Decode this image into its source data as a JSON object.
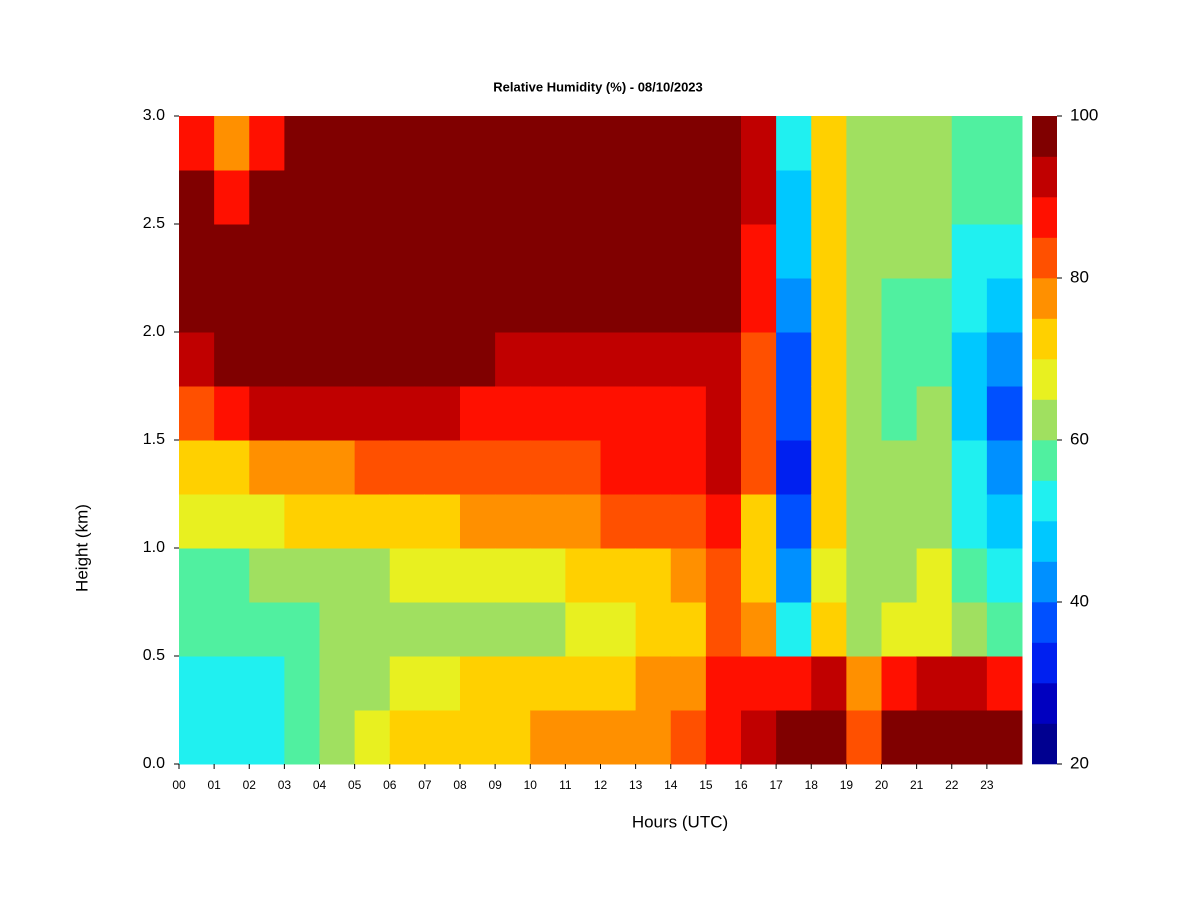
{
  "chart_data": {
    "type": "heatmap",
    "title": "Relative Humidity (%) - 08/10/2023",
    "xlabel": "Hours (UTC)",
    "ylabel": "Height (km)",
    "x": [
      0.5,
      1.5,
      2.5,
      3.5,
      4.5,
      5.5,
      6.5,
      7.5,
      8.5,
      9.5,
      10.5,
      11.5,
      12.5,
      13.5,
      14.5,
      15.5,
      16.5,
      17.5,
      18.5,
      19.5,
      20.5,
      21.5,
      22.5,
      23.5
    ],
    "y": [
      0.125,
      0.375,
      0.625,
      0.875,
      1.125,
      1.375,
      1.625,
      1.875,
      2.125,
      2.375,
      2.625,
      2.875
    ],
    "z": [
      [
        50,
        52,
        55,
        58,
        65,
        72,
        80,
        92,
        100,
        100,
        95,
        85
      ],
      [
        50,
        53,
        55,
        58,
        66,
        74,
        85,
        97,
        100,
        100,
        88,
        75
      ],
      [
        52,
        54,
        55,
        60,
        68,
        76,
        92,
        100,
        100,
        100,
        97,
        88
      ],
      [
        55,
        55,
        57,
        62,
        70,
        78,
        90,
        100,
        100,
        100,
        100,
        95
      ],
      [
        62,
        60,
        60,
        63,
        70,
        78,
        90,
        100,
        100,
        100,
        100,
        97
      ],
      [
        68,
        63,
        60,
        64,
        72,
        80,
        90,
        100,
        100,
        100,
        100,
        100
      ],
      [
        72,
        66,
        62,
        65,
        73,
        82,
        90,
        100,
        100,
        100,
        100,
        100
      ],
      [
        73,
        68,
        63,
        66,
        74,
        82,
        90,
        98,
        100,
        100,
        100,
        100
      ],
      [
        74,
        70,
        63,
        67,
        75,
        83,
        88,
        96,
        100,
        100,
        100,
        100
      ],
      [
        74,
        70,
        63,
        68,
        76,
        83,
        88,
        93,
        100,
        100,
        100,
        100
      ],
      [
        75,
        70,
        63,
        68,
        76,
        84,
        88,
        93,
        100,
        100,
        100,
        97
      ],
      [
        76,
        72,
        65,
        70,
        78,
        84,
        88,
        92,
        100,
        100,
        100,
        100
      ],
      [
        78,
        74,
        68,
        72,
        80,
        85,
        88,
        92,
        100,
        100,
        100,
        100
      ],
      [
        78,
        75,
        70,
        74,
        82,
        86,
        88,
        90,
        100,
        100,
        100,
        100
      ],
      [
        80,
        78,
        72,
        76,
        83,
        86,
        88,
        90,
        98,
        100,
        100,
        100
      ],
      [
        86,
        88,
        84,
        84,
        87,
        92,
        93,
        90,
        97,
        100,
        100,
        100
      ],
      [
        90,
        86,
        75,
        70,
        72,
        80,
        82,
        80,
        85,
        88,
        90,
        90
      ],
      [
        100,
        85,
        50,
        40,
        35,
        33,
        35,
        38,
        40,
        45,
        48,
        50
      ],
      [
        98,
        90,
        70,
        68,
        70,
        72,
        72,
        72,
        72,
        72,
        72,
        72
      ],
      [
        82,
        75,
        62,
        60,
        60,
        62,
        60,
        60,
        60,
        60,
        62,
        62
      ],
      [
        100,
        88,
        65,
        62,
        60,
        60,
        58,
        58,
        58,
        60,
        62,
        62
      ],
      [
        100,
        90,
        68,
        65,
        62,
        62,
        60,
        58,
        58,
        60,
        62,
        62
      ],
      [
        100,
        90,
        60,
        55,
        52,
        50,
        48,
        48,
        50,
        52,
        55,
        55
      ],
      [
        100,
        88,
        58,
        50,
        45,
        40,
        38,
        40,
        45,
        50,
        55,
        55
      ]
    ],
    "xlim": [
      0,
      24
    ],
    "ylim": [
      0,
      3
    ],
    "xticks": [
      {
        "value": 0,
        "label": "00"
      },
      {
        "value": 1,
        "label": "01"
      },
      {
        "value": 2,
        "label": "02"
      },
      {
        "value": 3,
        "label": "03"
      },
      {
        "value": 4,
        "label": "04"
      },
      {
        "value": 5,
        "label": "05"
      },
      {
        "value": 6,
        "label": "06"
      },
      {
        "value": 7,
        "label": "07"
      },
      {
        "value": 8,
        "label": "08"
      },
      {
        "value": 9,
        "label": "09"
      },
      10,
      11,
      12,
      13,
      14,
      15,
      16,
      17,
      18,
      19,
      20,
      21,
      22,
      23
    ],
    "yticks": [
      {
        "value": 0,
        "label": "0.0"
      },
      {
        "value": 0.5,
        "label": "0.5"
      },
      {
        "value": 1,
        "label": "1.0"
      },
      {
        "value": 1.5,
        "label": "1.5"
      },
      {
        "value": 2,
        "label": "2.0"
      },
      {
        "value": 2.5,
        "label": "2.5"
      },
      {
        "value": 3,
        "label": "3.0"
      }
    ],
    "levels": [
      20,
      25,
      30,
      35,
      40,
      45,
      50,
      55,
      60,
      65,
      70,
      75,
      80,
      85,
      90,
      95,
      100
    ],
    "colors": [
      "#000090",
      "#0000c0",
      "#0020f0",
      "#0050ff",
      "#0090ff",
      "#00c8ff",
      "#20f0f0",
      "#50f0a0",
      "#a0e060",
      "#e8f020",
      "#ffd000",
      "#ff9000",
      "#ff5000",
      "#ff1000",
      "#c00000",
      "#800000"
    ],
    "colorbar_ticks": [
      20,
      40,
      60,
      80,
      100
    ]
  }
}
